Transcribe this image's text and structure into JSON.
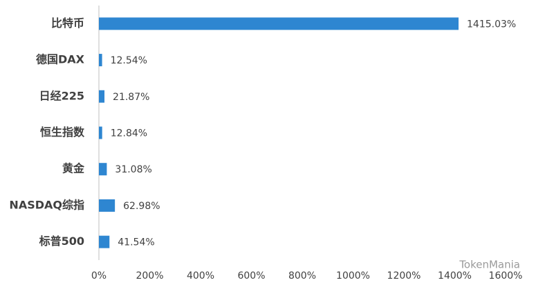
{
  "chart_data": {
    "type": "hbar",
    "categories": [
      "比特币",
      "德国DAX",
      "日经225",
      "恒生指数",
      "黄金",
      "NASDAQ综指",
      "标普500"
    ],
    "values": [
      1415.03,
      12.54,
      21.87,
      12.84,
      31.08,
      62.98,
      41.54
    ],
    "value_labels": [
      "1415.03%",
      "12.54%",
      "21.87%",
      "12.84%",
      "31.08%",
      "62.98%",
      "41.54%"
    ],
    "color": "#2e86d1",
    "xlim": [
      0,
      1600
    ],
    "xticks": [
      {
        "value": 0,
        "label": "0%"
      },
      {
        "value": 200,
        "label": "200%"
      },
      {
        "value": 400,
        "label": "400%"
      },
      {
        "value": 600,
        "label": "600%"
      },
      {
        "value": 800,
        "label": "800%"
      },
      {
        "value": 1000,
        "label": "1000%"
      },
      {
        "value": 1200,
        "label": "1200%"
      },
      {
        "value": 1400,
        "label": "1400%"
      },
      {
        "value": 1600,
        "label": "1600%"
      }
    ],
    "watermark": "TokenMania"
  }
}
